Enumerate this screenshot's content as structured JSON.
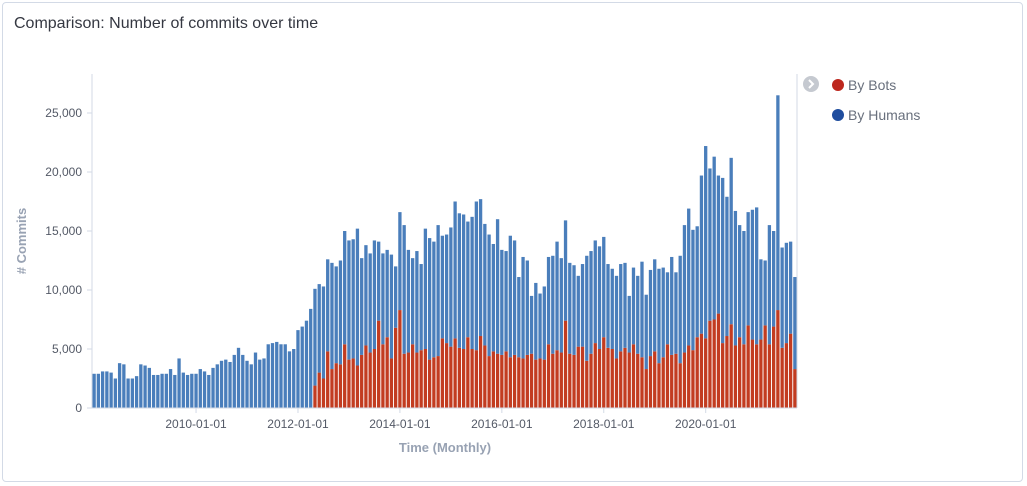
{
  "panel": {
    "title": "Comparison: Number of commits over time"
  },
  "chart_data": {
    "type": "bar",
    "stacked": true,
    "xlabel": "Time (Monthly)",
    "ylabel": "# Commits",
    "start_month": "2008-01",
    "x_ticks": [
      "2010-01-01",
      "2012-01-01",
      "2014-01-01",
      "2016-01-01",
      "2018-01-01",
      "2020-01-01"
    ],
    "y_ticks": [
      "0",
      "5,000",
      "10,000",
      "15,000",
      "20,000",
      "25,000"
    ],
    "ylim": [
      0,
      27000
    ],
    "grid": false,
    "legend_position": "right",
    "legend": [
      {
        "label": "By Bots",
        "color": "#bd271e"
      },
      {
        "label": "By Humans",
        "color": "#4a7ebb"
      }
    ],
    "series": [
      {
        "name": "By Bots",
        "color": "#c23c21",
        "values": [
          0,
          0,
          0,
          0,
          0,
          0,
          0,
          0,
          0,
          0,
          0,
          0,
          0,
          0,
          0,
          0,
          0,
          0,
          0,
          0,
          0,
          0,
          0,
          0,
          0,
          0,
          0,
          0,
          0,
          0,
          0,
          0,
          0,
          0,
          0,
          0,
          0,
          0,
          0,
          0,
          0,
          0,
          0,
          0,
          0,
          0,
          0,
          0,
          0,
          0,
          0,
          0,
          1900,
          3000,
          2500,
          4800,
          3300,
          3800,
          3700,
          5400,
          4100,
          4200,
          3600,
          4500,
          5300,
          4700,
          5000,
          7400,
          5400,
          6000,
          4200,
          6800,
          8300,
          4600,
          4700,
          5400,
          4700,
          4900,
          5000,
          4100,
          4300,
          4400,
          5900,
          5500,
          5200,
          5900,
          5100,
          5000,
          6000,
          5000,
          4900,
          6100,
          5300,
          4400,
          4800,
          4600,
          4500,
          4800,
          4300,
          4500,
          4300,
          4200,
          4500,
          4600,
          4100,
          4200,
          4100,
          5400,
          4600,
          4900,
          4700,
          7400,
          4600,
          4500,
          5200,
          5200,
          4000,
          4600,
          5500,
          5000,
          6000,
          5100,
          5000,
          4200,
          4800,
          5100,
          4700,
          5400,
          4600,
          4300,
          3300,
          4400,
          4800,
          3800,
          4300,
          5400,
          4500,
          4600,
          3800,
          4700,
          5300,
          4900,
          6000,
          6300,
          5900,
          7400,
          7500,
          8000,
          5500,
          6100,
          7100,
          5300,
          6000,
          5400,
          7000,
          5800,
          5400,
          5800,
          7000,
          5400,
          6900,
          8300,
          5100,
          5500,
          6300,
          3300
        ]
      },
      {
        "name": "By Humans",
        "color": "#4a7ebb",
        "values": [
          2900,
          2900,
          3100,
          3100,
          3000,
          2500,
          3800,
          3700,
          2500,
          2500,
          2700,
          3700,
          3600,
          3400,
          2800,
          2800,
          2900,
          2900,
          3300,
          2800,
          4200,
          3000,
          2800,
          2900,
          2900,
          3300,
          3100,
          2800,
          3400,
          3700,
          4000,
          4100,
          3900,
          4500,
          5100,
          4500,
          4000,
          3700,
          4700,
          4100,
          4200,
          5400,
          5500,
          5600,
          5400,
          5400,
          4800,
          5000,
          6600,
          6900,
          7400,
          8400,
          8200,
          7500,
          7800,
          7800,
          9000,
          8200,
          8800,
          9600,
          10100,
          10100,
          11600,
          8200,
          8500,
          8400,
          9200,
          6700,
          7700,
          7400,
          8800,
          5200,
          8300,
          10900,
          8700,
          7300,
          8600,
          7300,
          10200,
          10300,
          9800,
          11100,
          8700,
          9200,
          10100,
          11600,
          11400,
          11400,
          9800,
          11200,
          12600,
          11600,
          10300,
          10300,
          9100,
          11400,
          8900,
          8500,
          10300,
          9700,
          6800,
          8600,
          8000,
          4900,
          6500,
          5500,
          6200,
          7400,
          8300,
          9200,
          8000,
          8500,
          7700,
          7600,
          6000,
          7000,
          8900,
          8700,
          8700,
          8700,
          8500,
          7100,
          6800,
          7000,
          7400,
          7200,
          4800,
          6500,
          6600,
          8100,
          6300,
          7300,
          7800,
          8000,
          7600,
          6100,
          8300,
          6900,
          9100,
          10800,
          11600,
          10200,
          9400,
          13400,
          16300,
          12900,
          13800,
          11700,
          14000,
          11800,
          14100,
          11400,
          9500,
          9600,
          9600,
          11000,
          11600,
          6800,
          5500,
          10100,
          8100,
          18200,
          8500,
          8500,
          7800,
          7800
        ]
      }
    ]
  }
}
